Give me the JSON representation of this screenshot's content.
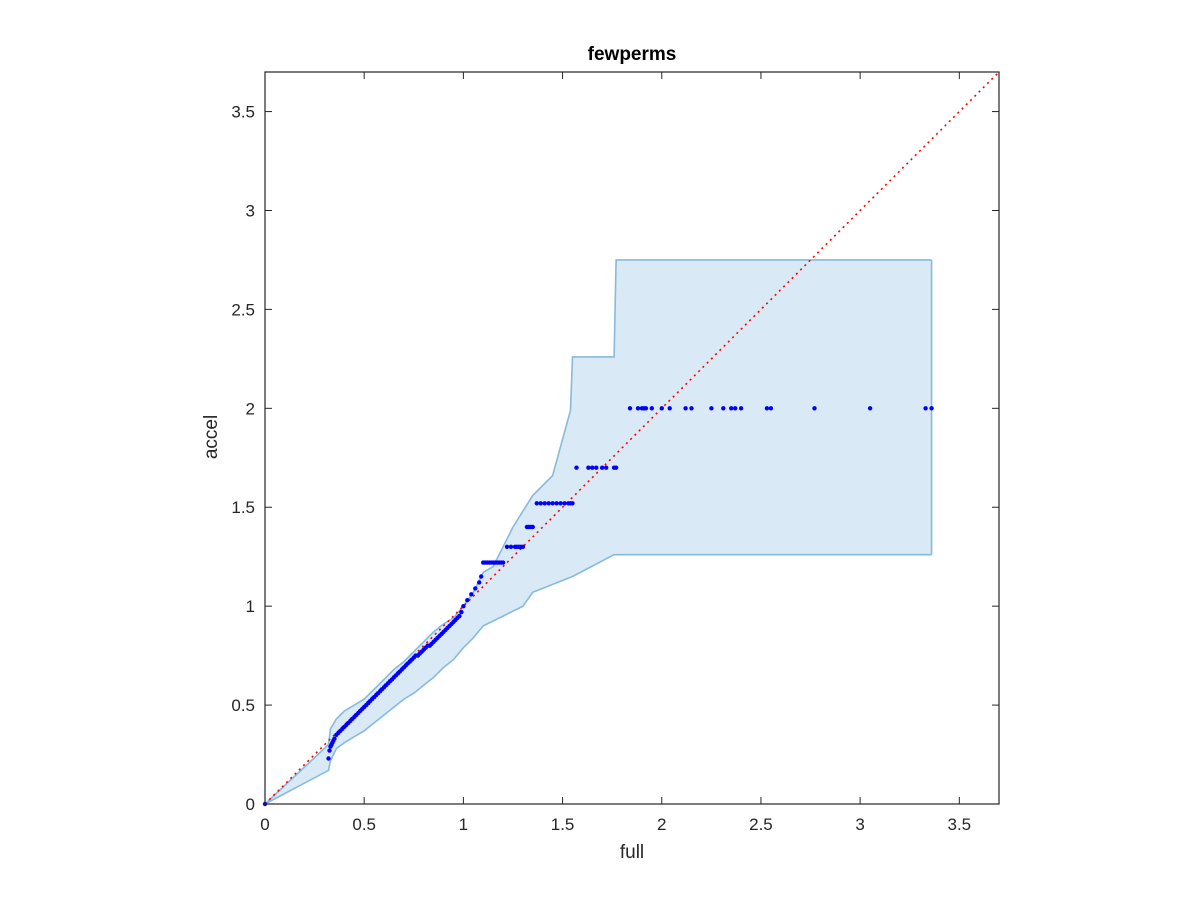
{
  "chart_data": {
    "type": "scatter",
    "title": "fewperms",
    "xlabel": "full",
    "ylabel": "accel",
    "xlim": [
      0,
      3.7
    ],
    "ylim": [
      0,
      3.7
    ],
    "xticks": [
      0,
      0.5,
      1,
      1.5,
      2,
      2.5,
      3,
      3.5
    ],
    "yticks": [
      0,
      0.5,
      1,
      1.5,
      2,
      2.5,
      3,
      3.5
    ],
    "xtick_labels": [
      "0",
      "0.5",
      "1",
      "1.5",
      "2",
      "2.5",
      "3",
      "3.5"
    ],
    "ytick_labels": [
      "0",
      "0.5",
      "1",
      "1.5",
      "2",
      "2.5",
      "3",
      "3.5"
    ],
    "grid": false,
    "colors": {
      "points": "#0000ff",
      "band_fill": "#d9e9f5",
      "band_edge": "#86bbdc",
      "reference_line": "#ff0000",
      "axes": "#262626"
    },
    "reference_line": {
      "from": [
        0,
        0
      ],
      "to": [
        3.7,
        3.7
      ],
      "style": "dotted"
    },
    "band_upper": [
      [
        0,
        0
      ],
      [
        0.32,
        0.3
      ],
      [
        0.33,
        0.38
      ],
      [
        0.36,
        0.43
      ],
      [
        0.4,
        0.47
      ],
      [
        0.45,
        0.5
      ],
      [
        0.5,
        0.53
      ],
      [
        0.55,
        0.58
      ],
      [
        0.6,
        0.63
      ],
      [
        0.65,
        0.68
      ],
      [
        0.7,
        0.72
      ],
      [
        0.75,
        0.77
      ],
      [
        0.8,
        0.82
      ],
      [
        0.85,
        0.87
      ],
      [
        0.9,
        0.91
      ],
      [
        0.95,
        0.94
      ],
      [
        1.0,
        1.0
      ],
      [
        1.05,
        1.07
      ],
      [
        1.1,
        1.17
      ],
      [
        1.15,
        1.2
      ],
      [
        1.2,
        1.3
      ],
      [
        1.25,
        1.4
      ],
      [
        1.3,
        1.48
      ],
      [
        1.35,
        1.56
      ],
      [
        1.45,
        1.66
      ],
      [
        1.54,
        1.99
      ],
      [
        1.55,
        2.26
      ],
      [
        1.76,
        2.26
      ],
      [
        1.77,
        2.75
      ],
      [
        3.36,
        2.75
      ]
    ],
    "band_lower": [
      [
        0,
        0
      ],
      [
        0.32,
        0.17
      ],
      [
        0.33,
        0.22
      ],
      [
        0.36,
        0.28
      ],
      [
        0.4,
        0.31
      ],
      [
        0.45,
        0.34
      ],
      [
        0.5,
        0.37
      ],
      [
        0.55,
        0.41
      ],
      [
        0.6,
        0.45
      ],
      [
        0.65,
        0.49
      ],
      [
        0.7,
        0.53
      ],
      [
        0.75,
        0.56
      ],
      [
        0.8,
        0.6
      ],
      [
        0.85,
        0.64
      ],
      [
        0.9,
        0.69
      ],
      [
        0.95,
        0.73
      ],
      [
        1.0,
        0.79
      ],
      [
        1.05,
        0.84
      ],
      [
        1.1,
        0.9
      ],
      [
        1.2,
        0.95
      ],
      [
        1.3,
        1.0
      ],
      [
        1.35,
        1.07
      ],
      [
        1.55,
        1.15
      ],
      [
        1.76,
        1.26
      ],
      [
        3.36,
        1.26
      ]
    ],
    "points": {
      "x": [
        0,
        0.32,
        0.325,
        0.33,
        0.335,
        0.34,
        0.345,
        0.35,
        0.36,
        0.37,
        0.38,
        0.39,
        0.4,
        0.41,
        0.42,
        0.43,
        0.44,
        0.45,
        0.46,
        0.47,
        0.48,
        0.49,
        0.5,
        0.51,
        0.52,
        0.53,
        0.54,
        0.55,
        0.56,
        0.57,
        0.58,
        0.59,
        0.6,
        0.61,
        0.62,
        0.63,
        0.64,
        0.65,
        0.66,
        0.67,
        0.68,
        0.69,
        0.7,
        0.71,
        0.72,
        0.73,
        0.74,
        0.75,
        0.76,
        0.77,
        0.78,
        0.79,
        0.8,
        0.81,
        0.82,
        0.83,
        0.84,
        0.85,
        0.86,
        0.87,
        0.88,
        0.89,
        0.9,
        0.91,
        0.92,
        0.93,
        0.94,
        0.95,
        0.96,
        0.97,
        0.98,
        0.99,
        1.0,
        1.02,
        1.04,
        1.06,
        1.08,
        1.09,
        1.1,
        1.11,
        1.12,
        1.13,
        1.14,
        1.15,
        1.16,
        1.17,
        1.18,
        1.19,
        1.2,
        1.22,
        1.24,
        1.26,
        1.27,
        1.28,
        1.29,
        1.3,
        1.32,
        1.33,
        1.34,
        1.35,
        1.37,
        1.39,
        1.41,
        1.43,
        1.45,
        1.47,
        1.49,
        1.51,
        1.53,
        1.54,
        1.55,
        1.57,
        1.63,
        1.65,
        1.67,
        1.7,
        1.72,
        1.76,
        1.77,
        1.84,
        1.88,
        1.9,
        1.91,
        1.92,
        1.95,
        2.0,
        2.04,
        2.12,
        2.15,
        2.25,
        2.31,
        2.35,
        2.37,
        2.4,
        2.53,
        2.55,
        2.77,
        3.05,
        3.33,
        3.36
      ],
      "y": [
        0,
        0.23,
        0.27,
        0.29,
        0.3,
        0.31,
        0.32,
        0.33,
        0.35,
        0.36,
        0.37,
        0.38,
        0.39,
        0.4,
        0.41,
        0.42,
        0.43,
        0.44,
        0.45,
        0.46,
        0.47,
        0.48,
        0.49,
        0.5,
        0.51,
        0.52,
        0.53,
        0.54,
        0.55,
        0.56,
        0.57,
        0.58,
        0.59,
        0.6,
        0.61,
        0.62,
        0.63,
        0.64,
        0.65,
        0.66,
        0.67,
        0.68,
        0.69,
        0.7,
        0.71,
        0.72,
        0.73,
        0.74,
        0.75,
        0.75,
        0.76,
        0.77,
        0.78,
        0.79,
        0.8,
        0.8,
        0.81,
        0.82,
        0.83,
        0.84,
        0.85,
        0.86,
        0.87,
        0.88,
        0.89,
        0.9,
        0.91,
        0.92,
        0.93,
        0.94,
        0.95,
        0.97,
        1.0,
        1.03,
        1.06,
        1.09,
        1.12,
        1.15,
        1.22,
        1.22,
        1.22,
        1.22,
        1.22,
        1.22,
        1.22,
        1.22,
        1.22,
        1.22,
        1.22,
        1.3,
        1.3,
        1.3,
        1.3,
        1.3,
        1.3,
        1.3,
        1.4,
        1.4,
        1.4,
        1.4,
        1.52,
        1.52,
        1.52,
        1.52,
        1.52,
        1.52,
        1.52,
        1.52,
        1.52,
        1.52,
        1.52,
        1.7,
        1.7,
        1.7,
        1.7,
        1.7,
        1.7,
        1.7,
        1.7,
        2.0,
        2.0,
        2.0,
        2.0,
        2.0,
        2.0,
        2.0,
        2.0,
        2.0,
        2.0,
        2.0,
        2.0,
        2.0,
        2.0,
        2.0,
        2.0,
        2.0,
        2.0,
        2.0,
        2.0,
        2.0
      ]
    }
  }
}
